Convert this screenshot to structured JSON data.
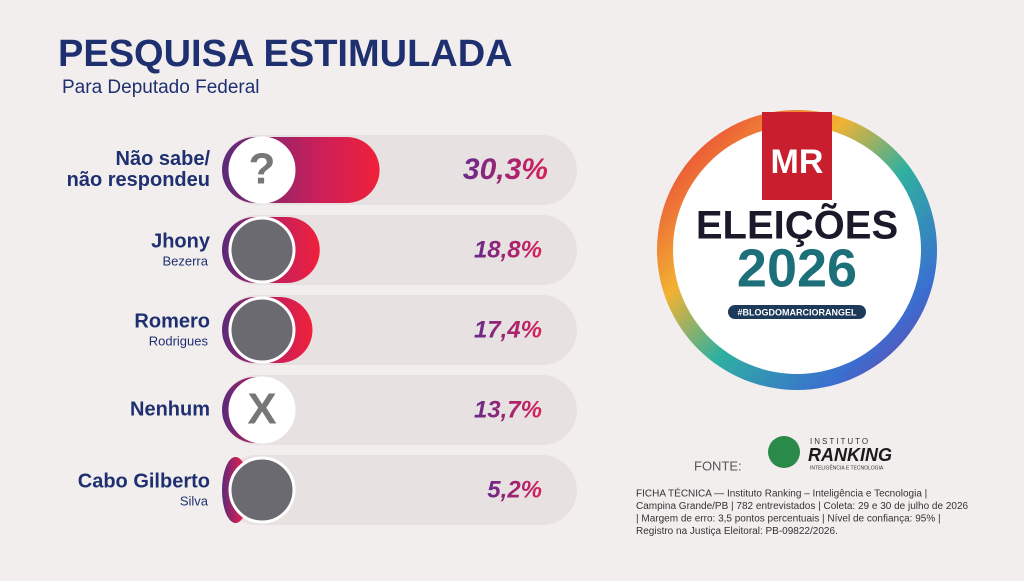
{
  "chart_data": {
    "type": "bar",
    "orientation": "horizontal",
    "title": "PESQUISA ESTIMULADA",
    "subtitle": "Para Deputado Federal",
    "categories": [
      "Não sabe/\nnão respondeu",
      "Jhony",
      "Romero",
      "Nenhum",
      "Cabo Gilberto"
    ],
    "category_sublabels": [
      null,
      "Bezerra",
      "Rodrigues",
      null,
      "Silva"
    ],
    "icons": [
      "?",
      null,
      null,
      "X",
      null
    ],
    "values": [
      30.3,
      18.8,
      17.4,
      13.7,
      5.2
    ],
    "value_labels": [
      "30,3%",
      "18,8%",
      "17,4%",
      "13,7%",
      "5,2%"
    ],
    "color": "#e8213a"
  },
  "badge": {
    "logo": "MR",
    "line1": "ELEIÇÕES",
    "line2": "2026",
    "tag": "#BLOGDOMARCIORANGEL"
  },
  "source": {
    "label": "FONTE:",
    "institute_top": "INSTITUTO",
    "institute_name": "RANKING",
    "institute_sub": "INTELIGÊNCIA E TECNOLOGIA"
  },
  "technical_note": [
    "FICHA TÉCNICA — Instituto Ranking – Inteligência e Tecnologia |",
    "Campina Grande/PB | 782 entrevistados | Coleta: 29 e 30 de julho de 2026",
    "| Margem de erro: 3,5 pontos percentuais | Nível de confiança: 95% |",
    "Registro na Justiça Eleitoral: PB-09822/2026."
  ]
}
